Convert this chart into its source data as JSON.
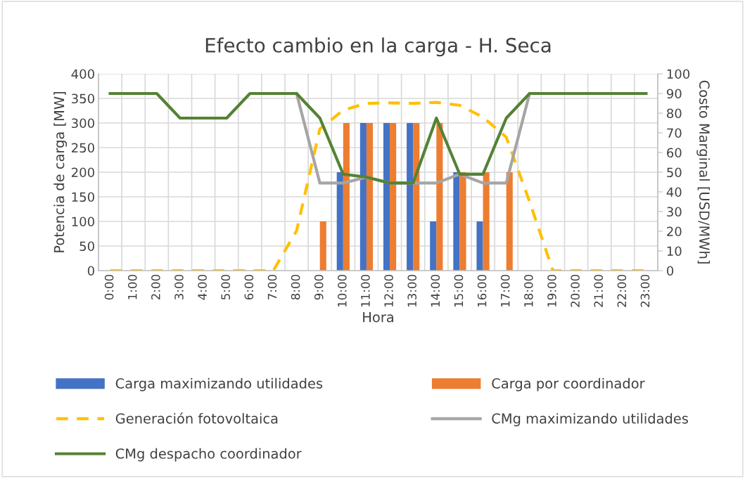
{
  "chart_data": {
    "type": "bar",
    "title": "Efecto cambio en la carga - H. Seca",
    "xlabel": "Hora",
    "ylabel": "Potencia de carga [MW]",
    "y2label": "Costo Marginal [USD/MWh]",
    "categories": [
      "0:00",
      "1:00",
      "2:00",
      "3:00",
      "4:00",
      "5:00",
      "6:00",
      "7:00",
      "8:00",
      "9:00",
      "10:00",
      "11:00",
      "12:00",
      "13:00",
      "14:00",
      "15:00",
      "16:00",
      "17:00",
      "18:00",
      "19:00",
      "20:00",
      "21:00",
      "22:00",
      "23:00"
    ],
    "series": [
      {
        "name": "Carga maximizando utilidades",
        "color": "#4472c4",
        "values": [
          0,
          0,
          0,
          0,
          0,
          0,
          0,
          0,
          0,
          0,
          200,
          300,
          300,
          300,
          100,
          200,
          100,
          0,
          0,
          0,
          0,
          0,
          0,
          0
        ]
      },
      {
        "name": "Carga por coordinador",
        "color": "#ed7d31",
        "values": [
          0,
          0,
          0,
          0,
          0,
          0,
          0,
          0,
          0,
          100,
          300,
          300,
          300,
          300,
          300,
          200,
          200,
          200,
          0,
          0,
          0,
          0,
          0,
          0
        ]
      },
      {
        "name": "Generación fotovoltaica",
        "type": "line",
        "line_style": "dashed",
        "color": "#ffc000",
        "values": [
          0,
          0,
          0,
          0,
          0,
          0,
          0,
          0,
          81,
          288,
          326,
          340,
          341,
          340,
          342,
          336,
          312,
          271,
          140,
          0,
          0,
          0,
          0,
          0
        ]
      },
      {
        "name": "CMg maximizando utilidades",
        "type": "line",
        "line_style": "solid",
        "axis": "y2",
        "color": "#a5a5a5",
        "values": [
          null,
          null,
          null,
          null,
          null,
          null,
          null,
          null,
          90,
          44.5,
          44.5,
          47.5,
          44.5,
          44.5,
          44.5,
          49,
          44.5,
          44.5,
          90,
          null,
          null,
          null,
          null,
          null
        ]
      },
      {
        "name": "CMg despacho coordinador",
        "type": "line",
        "line_style": "solid",
        "axis": "y2",
        "color": "#548235",
        "values": [
          90,
          90,
          90,
          77.5,
          77.5,
          77.5,
          90,
          90,
          90,
          77.5,
          49,
          47.5,
          44.5,
          44.5,
          77.5,
          49,
          49,
          77.5,
          90,
          90,
          90,
          90,
          90,
          90
        ]
      }
    ],
    "ylim": [
      0,
      400
    ],
    "yticks": [
      0,
      50,
      100,
      150,
      200,
      250,
      300,
      350,
      400
    ],
    "y2lim": [
      0,
      100
    ],
    "y2ticks": [
      0,
      10,
      20,
      30,
      40,
      50,
      60,
      70,
      80,
      90,
      100
    ],
    "grid": true,
    "legend": "bottom",
    "marker": "none"
  }
}
